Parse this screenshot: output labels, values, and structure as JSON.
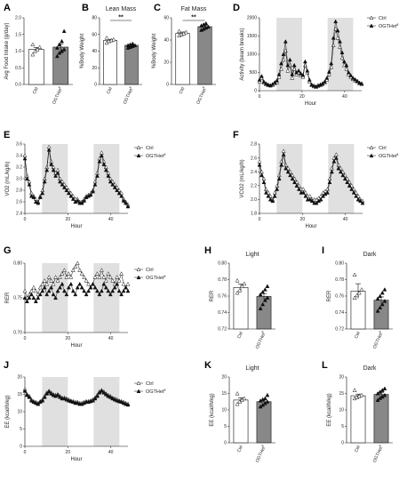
{
  "figure": {
    "background": "#ffffff",
    "ctrl_color": "#ffffff",
    "het_color": "#888888",
    "shade_color": "#e0e0e0"
  },
  "chart_data": [
    {
      "id": "A",
      "type": "bar",
      "title": "",
      "ylabel": "Avg Food Intake (g/day)",
      "categories": [
        "Ctrl",
        "OGTHet"
      ],
      "category_superscript": [
        "",
        "fl"
      ],
      "values": [
        1.05,
        1.12
      ],
      "errors": [
        0.06,
        0.1
      ],
      "ylim": [
        0,
        2.0
      ],
      "yticks": [
        0.0,
        0.5,
        1.0,
        1.5,
        2.0
      ],
      "ytick_labels": [
        "0.0",
        "0.5",
        "1.0",
        "1.5",
        "2.0"
      ],
      "points": [
        [
          0.9,
          1.0,
          1.05,
          1.12,
          1.2
        ],
        [
          0.85,
          0.95,
          1.0,
          1.05,
          1.1,
          1.2,
          1.3,
          1.6
        ]
      ],
      "significance": ""
    },
    {
      "id": "B",
      "type": "bar",
      "title": "Lean Mass",
      "ylabel": "%Body Weight",
      "categories": [
        "Ctrl",
        "OGTHet"
      ],
      "category_superscript": [
        "",
        "fl"
      ],
      "values": [
        53,
        47
      ],
      "errors": [
        1.2,
        1.0
      ],
      "ylim": [
        0,
        80
      ],
      "yticks": [
        0,
        20,
        40,
        60,
        80
      ],
      "ytick_labels": [
        "0",
        "20",
        "40",
        "60",
        "80"
      ],
      "points": [
        [
          50,
          52,
          53,
          54,
          56
        ],
        [
          44,
          45,
          46,
          47,
          47,
          48,
          49
        ]
      ],
      "significance": "**"
    },
    {
      "id": "C",
      "type": "bar",
      "title": "Fat Mass",
      "ylabel": "%Body Weight",
      "categories": [
        "Ctrl",
        "OGTHet"
      ],
      "category_superscript": [
        "",
        "fl"
      ],
      "values": [
        46,
        52
      ],
      "errors": [
        1.2,
        1.0
      ],
      "ylim": [
        0,
        60
      ],
      "yticks": [
        0,
        20,
        40,
        60
      ],
      "ytick_labels": [
        "0",
        "20",
        "40",
        "60"
      ],
      "points": [
        [
          44,
          45,
          46,
          47,
          48
        ],
        [
          49,
          50,
          51,
          52,
          53,
          54,
          55
        ]
      ],
      "significance": "**"
    },
    {
      "id": "D",
      "type": "line",
      "title": "",
      "ylabel": "Activity (beam breaks)",
      "xlabel": "Hour",
      "xlim": [
        0,
        48
      ],
      "ylim": [
        0,
        2000
      ],
      "xticks": [
        0,
        20,
        40
      ],
      "yticks": [
        0,
        500,
        1000,
        1500,
        2000
      ],
      "ytick_labels": [
        "0",
        "500",
        "1000",
        "1500",
        "2000"
      ],
      "shade": [
        [
          8,
          20
        ],
        [
          32,
          44
        ]
      ],
      "series": [
        {
          "name": "Ctrl",
          "name_superscript": "",
          "marker": "open",
          "values": [
            250,
            350,
            220,
            180,
            150,
            140,
            160,
            200,
            220,
            380,
            600,
            850,
            1100,
            550,
            700,
            350,
            600,
            450,
            500,
            420,
            380,
            700,
            500,
            250,
            150,
            120,
            100,
            130,
            150,
            180,
            220,
            300,
            450,
            650,
            1250,
            1700,
            1450,
            1200,
            900,
            700,
            600,
            450,
            380,
            320,
            280,
            250,
            200,
            180
          ]
        },
        {
          "name": "OGTHet",
          "name_superscript": "fl",
          "marker": "filled",
          "values": [
            300,
            400,
            250,
            200,
            170,
            150,
            180,
            230,
            280,
            450,
            750,
            1000,
            1350,
            700,
            850,
            450,
            700,
            500,
            550,
            470,
            430,
            800,
            550,
            300,
            170,
            140,
            120,
            150,
            170,
            200,
            250,
            350,
            520,
            750,
            1450,
            1900,
            1650,
            1350,
            1050,
            800,
            700,
            500,
            420,
            350,
            310,
            270,
            220,
            200
          ]
        }
      ]
    },
    {
      "id": "E",
      "type": "line",
      "title": "",
      "ylabel": "VO2 (mL/kg/h)",
      "xlabel": "Hour",
      "xlim": [
        0,
        48
      ],
      "ylim": [
        2.4,
        3.6
      ],
      "xticks": [
        0,
        20,
        40
      ],
      "yticks": [
        2.4,
        2.6,
        2.8,
        3.0,
        3.2,
        3.4,
        3.6
      ],
      "ytick_labels": [
        "2.4",
        "2.6",
        "2.8",
        "3.0",
        "3.2",
        "3.4",
        "3.6"
      ],
      "shade": [
        [
          8,
          20
        ],
        [
          32,
          44
        ]
      ],
      "series": [
        {
          "name": "Ctrl",
          "name_superscript": "",
          "marker": "open",
          "values": [
            3.4,
            3.05,
            2.95,
            2.75,
            2.7,
            2.65,
            2.6,
            2.7,
            2.8,
            3.0,
            3.2,
            3.55,
            3.3,
            3.2,
            3.1,
            3.15,
            3.0,
            2.95,
            2.9,
            2.85,
            2.8,
            2.75,
            2.7,
            2.65,
            2.65,
            2.6,
            2.6,
            2.65,
            2.7,
            2.72,
            2.75,
            2.8,
            2.95,
            3.1,
            3.35,
            3.45,
            3.3,
            3.2,
            3.1,
            3.0,
            2.95,
            2.9,
            2.85,
            2.8,
            2.75,
            2.65,
            2.6,
            2.55
          ]
        },
        {
          "name": "OGTHet",
          "name_superscript": "fl",
          "marker": "filled",
          "values": [
            3.35,
            3.0,
            2.9,
            2.7,
            2.68,
            2.6,
            2.58,
            2.68,
            2.75,
            2.95,
            3.15,
            3.5,
            3.25,
            3.15,
            3.05,
            3.1,
            2.95,
            2.9,
            2.85,
            2.8,
            2.75,
            2.7,
            2.65,
            2.6,
            2.62,
            2.58,
            2.58,
            2.62,
            2.68,
            2.7,
            2.72,
            2.78,
            2.9,
            3.05,
            3.3,
            3.4,
            3.25,
            3.15,
            3.05,
            2.95,
            2.9,
            2.85,
            2.8,
            2.75,
            2.7,
            2.62,
            2.58,
            2.52
          ]
        }
      ]
    },
    {
      "id": "F",
      "type": "line",
      "title": "",
      "ylabel": "VCO2 (mL/kg/h)",
      "xlabel": "Hour",
      "xlim": [
        0,
        48
      ],
      "ylim": [
        1.8,
        2.8
      ],
      "xticks": [
        0,
        20,
        40
      ],
      "yticks": [
        1.8,
        2.0,
        2.2,
        2.4,
        2.6,
        2.8
      ],
      "ytick_labels": [
        "1.8",
        "2.0",
        "2.2",
        "2.4",
        "2.6",
        "2.8"
      ],
      "shade": [
        [
          8,
          20
        ],
        [
          32,
          44
        ]
      ],
      "series": [
        {
          "name": "Ctrl",
          "name_superscript": "",
          "marker": "open",
          "values": [
            2.55,
            2.4,
            2.3,
            2.15,
            2.1,
            2.05,
            2.0,
            2.1,
            2.2,
            2.35,
            2.55,
            2.7,
            2.5,
            2.45,
            2.4,
            2.35,
            2.3,
            2.25,
            2.2,
            2.15,
            2.15,
            2.1,
            2.05,
            2.05,
            2.0,
            2.0,
            2.0,
            2.02,
            2.05,
            2.1,
            2.12,
            2.15,
            2.3,
            2.45,
            2.6,
            2.65,
            2.5,
            2.45,
            2.4,
            2.35,
            2.3,
            2.25,
            2.2,
            2.15,
            2.1,
            2.05,
            2.0,
            1.98
          ]
        },
        {
          "name": "OGTHet",
          "name_superscript": "fl",
          "marker": "filled",
          "values": [
            2.5,
            2.35,
            2.25,
            2.1,
            2.05,
            2.0,
            1.98,
            2.05,
            2.15,
            2.3,
            2.5,
            2.65,
            2.45,
            2.4,
            2.35,
            2.3,
            2.25,
            2.2,
            2.15,
            2.1,
            2.1,
            2.05,
            2.0,
            2.0,
            1.98,
            1.95,
            1.95,
            1.98,
            2.0,
            2.05,
            2.08,
            2.1,
            2.25,
            2.4,
            2.55,
            2.6,
            2.45,
            2.4,
            2.35,
            2.3,
            2.25,
            2.2,
            2.15,
            2.1,
            2.05,
            2.0,
            1.98,
            1.95
          ]
        }
      ]
    },
    {
      "id": "G",
      "type": "line",
      "title": "",
      "ylabel": "RER",
      "xlabel": "Hour",
      "xlim": [
        0,
        48
      ],
      "ylim": [
        0.7,
        0.8
      ],
      "xticks": [
        0,
        20,
        40
      ],
      "yticks": [
        0.7,
        0.75,
        0.8
      ],
      "ytick_labels": [
        "0.70",
        "0.75",
        "0.80"
      ],
      "shade": [
        [
          8,
          20
        ],
        [
          32,
          44
        ]
      ],
      "series": [
        {
          "name": "Ctrl",
          "name_superscript": "",
          "marker": "open",
          "values": [
            0.76,
            0.75,
            0.755,
            0.76,
            0.765,
            0.76,
            0.755,
            0.765,
            0.77,
            0.775,
            0.77,
            0.78,
            0.775,
            0.77,
            0.78,
            0.775,
            0.78,
            0.785,
            0.79,
            0.78,
            0.785,
            0.78,
            0.79,
            0.795,
            0.8,
            0.79,
            0.785,
            0.78,
            0.775,
            0.77,
            0.765,
            0.77,
            0.78,
            0.785,
            0.78,
            0.79,
            0.78,
            0.775,
            0.785,
            0.78,
            0.775,
            0.77,
            0.78,
            0.775,
            0.785,
            0.77,
            0.765,
            0.77
          ]
        },
        {
          "name": "OGTHet",
          "name_superscript": "fl",
          "marker": "filled",
          "values": [
            0.75,
            0.745,
            0.75,
            0.755,
            0.75,
            0.745,
            0.75,
            0.755,
            0.76,
            0.765,
            0.755,
            0.76,
            0.765,
            0.755,
            0.75,
            0.76,
            0.765,
            0.77,
            0.76,
            0.755,
            0.765,
            0.77,
            0.76,
            0.755,
            0.765,
            0.77,
            0.765,
            0.76,
            0.755,
            0.76,
            0.765,
            0.77,
            0.765,
            0.76,
            0.755,
            0.76,
            0.77,
            0.765,
            0.76,
            0.755,
            0.76,
            0.765,
            0.77,
            0.76,
            0.755,
            0.76,
            0.765,
            0.76
          ]
        }
      ]
    },
    {
      "id": "H",
      "type": "bar",
      "title": "Light",
      "ylabel": "RER",
      "categories": [
        "Ctrl",
        "OGTHet"
      ],
      "category_superscript": [
        "",
        "fl"
      ],
      "values": [
        0.7705,
        0.7595
      ],
      "errors": [
        0.004,
        0.0035
      ],
      "ylim": [
        0.72,
        0.8
      ],
      "yticks": [
        0.72,
        0.74,
        0.76,
        0.78,
        0.8
      ],
      "ytick_labels": [
        "0.72",
        "0.74",
        "0.76",
        "0.78",
        "0.80"
      ],
      "points": [
        [
          0.764,
          0.767,
          0.772,
          0.775,
          0.779
        ],
        [
          0.745,
          0.75,
          0.755,
          0.758,
          0.762,
          0.765,
          0.768,
          0.772
        ]
      ],
      "significance": ""
    },
    {
      "id": "I",
      "type": "bar",
      "title": "Dark",
      "ylabel": "RER",
      "categories": [
        "Ctrl",
        "OGTHet"
      ],
      "category_superscript": [
        "",
        "fl"
      ],
      "values": [
        0.766,
        0.755
      ],
      "errors": [
        0.009,
        0.004
      ],
      "ylim": [
        0.72,
        0.8
      ],
      "yticks": [
        0.72,
        0.74,
        0.76,
        0.78,
        0.8
      ],
      "ytick_labels": [
        "0.72",
        "0.74",
        "0.76",
        "0.78",
        "0.80"
      ],
      "points": [
        [
          0.758,
          0.761,
          0.764,
          0.768,
          0.786
        ],
        [
          0.742,
          0.746,
          0.75,
          0.754,
          0.757,
          0.76,
          0.764,
          0.768
        ]
      ],
      "significance": ""
    },
    {
      "id": "J",
      "type": "line",
      "title": "",
      "ylabel": "EE (kcal/h/kg)",
      "xlabel": "Hour",
      "xlim": [
        0,
        48
      ],
      "ylim": [
        0,
        20
      ],
      "xticks": [
        0,
        20,
        40
      ],
      "yticks": [
        0,
        5,
        10,
        15,
        20
      ],
      "ytick_labels": [
        "0",
        "5",
        "10",
        "15",
        "20"
      ],
      "shade": [
        [
          8,
          20
        ],
        [
          32,
          44
        ]
      ],
      "series": [
        {
          "name": "Ctrl",
          "name_superscript": "",
          "marker": "open",
          "values": [
            16.5,
            15.0,
            14.5,
            13.5,
            13.0,
            12.8,
            12.5,
            13.0,
            13.5,
            14.5,
            15.5,
            16.0,
            15.5,
            15.0,
            14.8,
            15.0,
            14.5,
            14.0,
            14.0,
            13.8,
            13.5,
            13.2,
            13.0,
            12.8,
            12.8,
            12.5,
            12.5,
            12.8,
            13.0,
            13.0,
            13.2,
            13.5,
            14.0,
            14.8,
            15.8,
            16.2,
            15.8,
            15.2,
            14.8,
            14.5,
            14.0,
            13.8,
            13.5,
            13.2,
            13.0,
            12.8,
            12.5,
            12.2
          ]
        },
        {
          "name": "OGTHet",
          "name_superscript": "fl",
          "marker": "filled",
          "values": [
            16.0,
            14.8,
            14.2,
            13.2,
            12.8,
            12.5,
            12.2,
            12.8,
            13.2,
            14.2,
            15.2,
            15.8,
            15.2,
            14.8,
            14.5,
            14.8,
            14.2,
            13.8,
            13.8,
            13.5,
            13.2,
            13.0,
            12.8,
            12.5,
            12.5,
            12.2,
            12.2,
            12.5,
            12.8,
            12.8,
            13.0,
            13.2,
            13.8,
            14.5,
            15.5,
            16.0,
            15.5,
            15.0,
            14.5,
            14.2,
            13.8,
            13.5,
            13.2,
            13.0,
            12.8,
            12.5,
            12.2,
            12.0
          ]
        }
      ]
    },
    {
      "id": "K",
      "type": "bar",
      "title": "Light",
      "ylabel": "EE (kcal/h/kg)",
      "categories": [
        "Ctrl",
        "OGTHet"
      ],
      "category_superscript": [
        "",
        "fl"
      ],
      "values": [
        13.0,
        12.5
      ],
      "errors": [
        0.7,
        0.45
      ],
      "ylim": [
        0,
        20
      ],
      "yticks": [
        0,
        5,
        10,
        15,
        20
      ],
      "ytick_labels": [
        "0",
        "5",
        "10",
        "15",
        "20"
      ],
      "points": [
        [
          11.8,
          12.5,
          13.0,
          13.5,
          15.0
        ],
        [
          11.0,
          11.5,
          12.0,
          12.5,
          12.8,
          13.2,
          13.5,
          14.5
        ]
      ],
      "significance": ""
    },
    {
      "id": "L",
      "type": "bar",
      "title": "Dark",
      "ylabel": "EE (kcal/h/kg)",
      "categories": [
        "Ctrl",
        "OGTHet"
      ],
      "category_superscript": [
        "",
        "fl"
      ],
      "values": [
        14.3,
        14.7
      ],
      "errors": [
        0.5,
        0.6
      ],
      "ylim": [
        0,
        20
      ],
      "yticks": [
        0,
        5,
        10,
        15,
        20
      ],
      "ytick_labels": [
        "0",
        "5",
        "10",
        "15",
        "20"
      ],
      "points": [
        [
          13.5,
          13.8,
          14.2,
          14.5,
          16.0
        ],
        [
          13.0,
          13.6,
          14.0,
          14.5,
          15.0,
          15.5,
          16.0,
          16.5
        ]
      ],
      "significance": ""
    }
  ]
}
